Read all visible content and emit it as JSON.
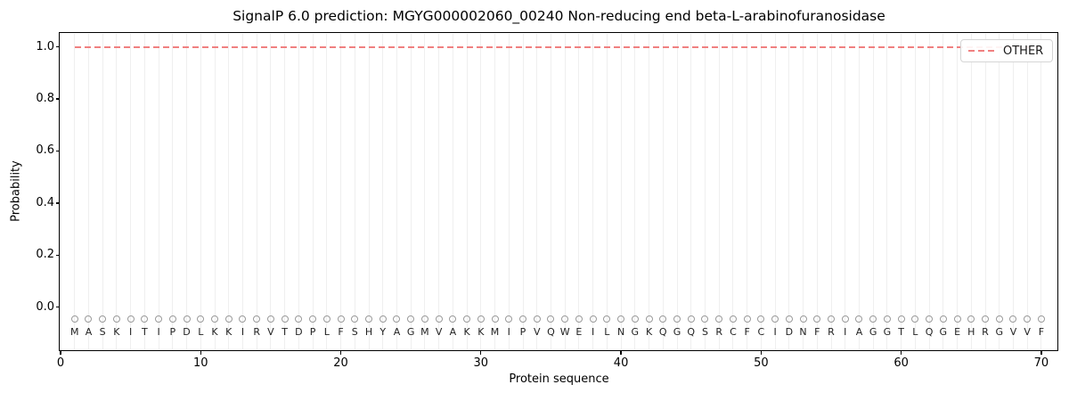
{
  "title": "SignalP 6.0 prediction: MGYG000002060_00240 Non-reducing end beta-L-arabinofuranosidase",
  "chart_data": {
    "type": "line",
    "title": "SignalP 6.0 prediction: MGYG000002060_00240 Non-reducing end beta-L-arabinofuranosidase",
    "xlabel": "Protein sequence",
    "ylabel": "Probability",
    "xlim": [
      0,
      71.15
    ],
    "ylim": [
      -0.165,
      1.05
    ],
    "x_ticks": [
      {
        "v": 0,
        "label": "0"
      },
      {
        "v": 10,
        "label": "10"
      },
      {
        "v": 20,
        "label": "20"
      },
      {
        "v": 30,
        "label": "30"
      },
      {
        "v": 40,
        "label": "40"
      },
      {
        "v": 50,
        "label": "50"
      },
      {
        "v": 60,
        "label": "60"
      },
      {
        "v": 70,
        "label": "70"
      }
    ],
    "y_ticks": [
      {
        "v": 0.0,
        "label": "0.0"
      },
      {
        "v": 0.2,
        "label": "0.2"
      },
      {
        "v": 0.4,
        "label": "0.4"
      },
      {
        "v": 0.6,
        "label": "0.6"
      },
      {
        "v": 0.8,
        "label": "0.8"
      },
      {
        "v": 1.0,
        "label": "1.0"
      }
    ],
    "grid": "vertical gridline at every residue position, no horizontal gridlines",
    "series": [
      {
        "name": "OTHER",
        "linestyle": "dashed",
        "color": "#f08080",
        "x_start": 1,
        "x_end": 70,
        "constant_y": 1.0,
        "note": "flat dashed line: OTHER probability = 1.0 for all 70 residues"
      }
    ],
    "legend": {
      "position": "upper right",
      "entries": [
        {
          "label": "OTHER",
          "color": "#f08080",
          "linestyle": "dashed"
        }
      ]
    },
    "sequence": "MASKITIPDLKKIRVTDPLFSHYAGMVAKKMIPVQWEILNGKQGQSRCFCIDNFRIAGGTLQGEHRGVVF",
    "sequence_markers": {
      "shape": "open-circle",
      "edge_color": "#9a9a9a",
      "y": -0.045
    },
    "sequence_letters_y": -0.098,
    "colors": {
      "line_other": "#f08080",
      "grid": "#efefef",
      "marker_edge": "#9a9a9a",
      "spine": "#000000",
      "text": "#000000",
      "background": "#ffffff"
    }
  }
}
